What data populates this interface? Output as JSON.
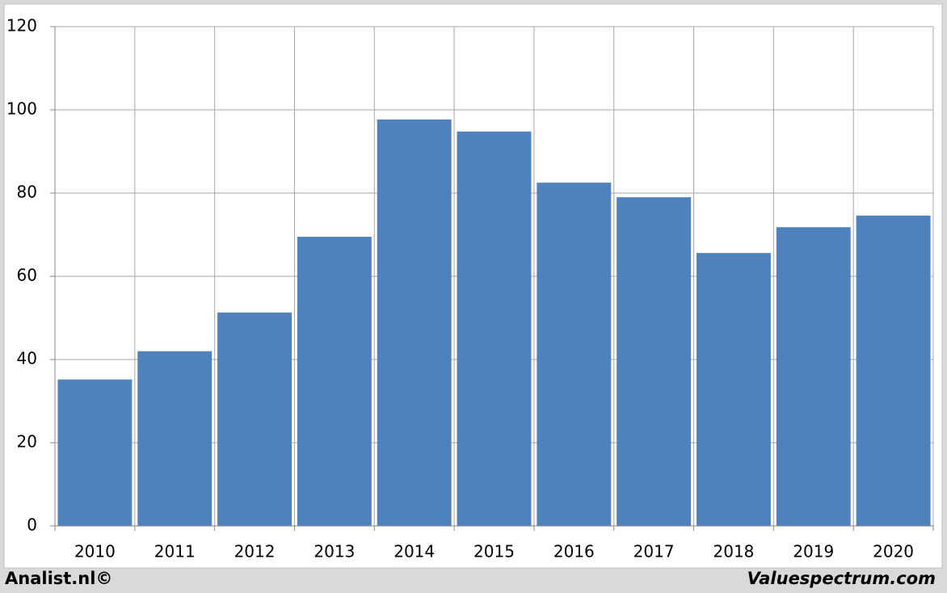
{
  "chart_data": {
    "type": "bar",
    "categories": [
      "2010",
      "2011",
      "2012",
      "2013",
      "2014",
      "2015",
      "2016",
      "2017",
      "2018",
      "2019",
      "2020"
    ],
    "values": [
      35.2,
      42,
      51.3,
      69.5,
      97.7,
      94.8,
      82.5,
      79,
      65.6,
      71.8,
      74.6
    ],
    "color": "#4f81bd",
    "ylim": [
      0,
      120
    ],
    "yticks": [
      0,
      20,
      40,
      60,
      80,
      100,
      120
    ],
    "grid": true,
    "credits": [
      "Analist.nl©",
      "Valuespectrum.com"
    ]
  }
}
